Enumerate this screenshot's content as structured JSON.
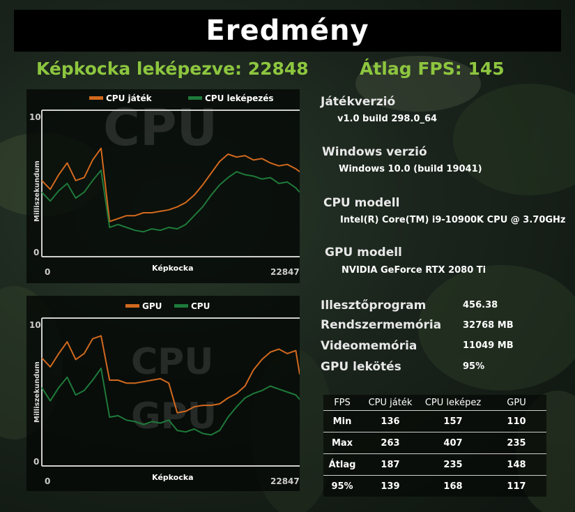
{
  "title": "Eredmény",
  "summary": {
    "frames_rendered": "Képkocka leképezve: 22848",
    "avg_fps": "Átlag FPS: 145"
  },
  "colors": {
    "orange": "#d2691e",
    "green": "#1e7a3a",
    "accent": "#8dc63f"
  },
  "charts": [
    {
      "legend": [
        {
          "name": "CPU játék",
          "color": "#d2691e"
        },
        {
          "name": "CPU leképezés",
          "color": "#1e7a3a"
        }
      ],
      "watermark": [
        "CPU"
      ],
      "y_label": "Milliszekundum",
      "y_ticks": [
        "10",
        "0"
      ],
      "x_label": "Képkocka",
      "x_ticks": [
        "0",
        "22847"
      ]
    },
    {
      "legend": [
        {
          "name": "GPU",
          "color": "#d2691e"
        },
        {
          "name": "CPU",
          "color": "#1e7a3a"
        }
      ],
      "watermark": [
        "CPU",
        "GPU"
      ],
      "y_label": "Milliszekundum",
      "y_ticks": [
        "10",
        "0"
      ],
      "x_label": "Képkocka",
      "x_ticks": [
        "0",
        "22847"
      ]
    }
  ],
  "chart_data": [
    {
      "type": "line",
      "xlabel": "Képkocka",
      "ylabel": "Milliszekundum",
      "xlim": [
        0,
        22847
      ],
      "ylim": [
        0,
        10
      ],
      "x": [
        0,
        750,
        1500,
        2250,
        3000,
        3750,
        4500,
        5250,
        6000,
        6750,
        7500,
        8250,
        9000,
        9750,
        10500,
        11250,
        12000,
        12750,
        13500,
        14250,
        15000,
        15750,
        16500,
        17250,
        18000,
        18750,
        19500,
        20250,
        21000,
        21750,
        22500,
        22847
      ],
      "series": [
        {
          "name": "CPU játék",
          "values": [
            5.2,
            4.6,
            5.6,
            6.4,
            5.2,
            5.4,
            6.6,
            7.4,
            2.4,
            2.6,
            2.8,
            2.8,
            3.0,
            3.0,
            3.1,
            3.2,
            3.4,
            3.7,
            4.2,
            4.9,
            5.7,
            6.5,
            7.0,
            6.8,
            6.9,
            6.6,
            6.7,
            6.4,
            6.2,
            6.3,
            6.0,
            5.8
          ]
        },
        {
          "name": "CPU leképezés",
          "values": [
            4.4,
            3.8,
            4.5,
            5.0,
            4.0,
            4.4,
            5.2,
            5.9,
            2.0,
            2.2,
            2.0,
            1.8,
            1.7,
            1.9,
            1.8,
            2.0,
            1.9,
            2.2,
            2.8,
            3.4,
            4.2,
            4.9,
            5.4,
            5.8,
            5.6,
            5.5,
            5.3,
            5.4,
            5.0,
            5.1,
            4.7,
            4.4
          ]
        }
      ]
    },
    {
      "type": "line",
      "xlabel": "Képkocka",
      "ylabel": "Milliszekundum",
      "xlim": [
        0,
        22847
      ],
      "ylim": [
        0,
        10
      ],
      "x": [
        0,
        750,
        1500,
        2250,
        3000,
        3750,
        4500,
        5250,
        6000,
        6750,
        7500,
        8250,
        9000,
        9750,
        10500,
        11250,
        12000,
        12750,
        13500,
        14250,
        15000,
        15750,
        16500,
        17250,
        18000,
        18750,
        19500,
        20250,
        21000,
        21750,
        22500,
        22847
      ],
      "series": [
        {
          "name": "GPU",
          "values": [
            7.3,
            6.7,
            7.6,
            8.4,
            7.2,
            7.6,
            8.6,
            8.8,
            5.8,
            5.8,
            5.6,
            5.6,
            5.7,
            5.8,
            5.9,
            5.6,
            3.6,
            3.7,
            4.0,
            4.1,
            4.1,
            4.2,
            4.6,
            4.9,
            5.4,
            6.5,
            7.2,
            7.7,
            7.9,
            7.6,
            7.8,
            6.2
          ]
        },
        {
          "name": "CPU",
          "values": [
            5.3,
            4.4,
            5.3,
            6.0,
            4.8,
            5.1,
            5.8,
            6.6,
            3.3,
            3.4,
            3.1,
            3.0,
            2.8,
            3.0,
            2.9,
            3.1,
            2.4,
            2.3,
            2.5,
            2.2,
            2.1,
            2.4,
            3.3,
            4.0,
            4.6,
            4.9,
            5.1,
            5.4,
            5.2,
            5.0,
            4.8,
            4.5
          ]
        }
      ]
    }
  ],
  "info": {
    "game_version_label": "Játékverzió",
    "game_version_value": "v1.0 build 298.0_64",
    "windows_label": "Windows verzió",
    "windows_value": "Windows 10.0 (build 19041)",
    "cpu_label": "CPU modell",
    "cpu_value": "Intel(R) Core(TM) i9-10900K CPU @ 3.70GHz",
    "gpu_label": "GPU modell",
    "gpu_value": "NVIDIA GeForce RTX 2080 Ti",
    "driver_label": "Illesztőprogram",
    "driver_value": "456.38",
    "sysmem_label": "Rendszermemória",
    "sysmem_value": "32768 MB",
    "vidmem_label": "Videomemória",
    "vidmem_value": "11049 MB",
    "gpubound_label": "GPU lekötés",
    "gpubound_value": "95%"
  },
  "stats": {
    "headers": [
      "FPS",
      "CPU játék",
      "CPU leképez",
      "GPU"
    ],
    "rows": [
      [
        "Min",
        "136",
        "157",
        "110"
      ],
      [
        "Max",
        "263",
        "407",
        "235"
      ],
      [
        "Átlag",
        "187",
        "235",
        "148"
      ],
      [
        "95%",
        "139",
        "168",
        "117"
      ]
    ]
  }
}
